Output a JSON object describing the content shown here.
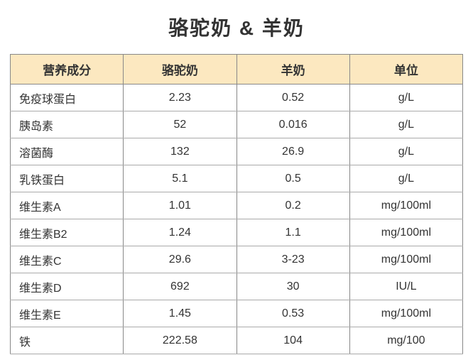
{
  "title": "骆驼奶  &  羊奶",
  "table": {
    "header_bg": "#fce8c0",
    "header_border": "#888888",
    "cell_border": "#aaaaaa",
    "columns": [
      "营养成分",
      "骆驼奶",
      "羊奶",
      "单位"
    ],
    "rows": [
      {
        "label": "免疫球蛋白",
        "v1": "2.23",
        "v2": "0.52",
        "unit": "g/L"
      },
      {
        "label": "胰岛素",
        "v1": "52",
        "v2": "0.016",
        "unit": "g/L"
      },
      {
        "label": "溶菌酶",
        "v1": "132",
        "v2": "26.9",
        "unit": "g/L"
      },
      {
        "label": "乳铁蛋白",
        "v1": "5.1",
        "v2": "0.5",
        "unit": "g/L"
      },
      {
        "label": "维生素A",
        "v1": "1.01",
        "v2": "0.2",
        "unit": "mg/100ml"
      },
      {
        "label": "维生素B2",
        "v1": "1.24",
        "v2": "1.1",
        "unit": "mg/100ml"
      },
      {
        "label": "维生素C",
        "v1": "29.6",
        "v2": "3-23",
        "unit": "mg/100ml"
      },
      {
        "label": "维生素D",
        "v1": "692",
        "v2": "30",
        "unit": "IU/L"
      },
      {
        "label": "维生素E",
        "v1": "1.45",
        "v2": "0.53",
        "unit": "mg/100ml"
      },
      {
        "label": "铁",
        "v1": "222.58",
        "v2": "104",
        "unit": "mg/100"
      }
    ]
  }
}
